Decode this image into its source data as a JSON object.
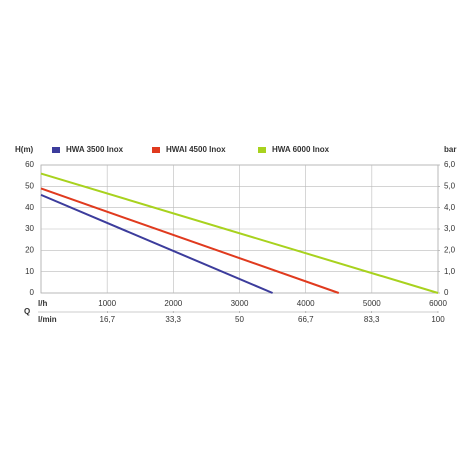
{
  "chart_data": {
    "type": "line",
    "ylabel": "H(m)",
    "y2label": "bar",
    "xlabel": "l/h",
    "x2label": "l/min",
    "xaxis_title": "Q",
    "xlim": [
      0,
      6000
    ],
    "xticks": [
      1000,
      2000,
      3000,
      4000,
      5000,
      6000
    ],
    "x2lim": [
      0,
      100
    ],
    "x2ticks": [
      {
        "value": 16.7,
        "label": "16,7"
      },
      {
        "value": 33.3,
        "label": "33,3"
      },
      50,
      {
        "value": 66.7,
        "label": "66,7"
      },
      {
        "value": 83.3,
        "label": "83,3"
      },
      100
    ],
    "ylim": [
      0,
      60
    ],
    "yticks": [
      0,
      10,
      20,
      30,
      40,
      50,
      60
    ],
    "y2lim": [
      0,
      6
    ],
    "y2ticks": [
      0,
      {
        "value": 1,
        "label": "1,0"
      },
      {
        "value": 2,
        "label": "2,0"
      },
      {
        "value": 3,
        "label": "3,0"
      },
      {
        "value": 4,
        "label": "4,0"
      },
      {
        "value": 5,
        "label": "5,0"
      },
      {
        "value": 6,
        "label": "6,0"
      }
    ],
    "grid": true,
    "series": [
      {
        "name": "HWA 3500 Inox",
        "color": "#3c3c9c",
        "x": [
          0,
          3500
        ],
        "values": [
          46,
          0
        ]
      },
      {
        "name": "HWAI 4500 Inox",
        "color": "#e03a1e",
        "x": [
          0,
          4500
        ],
        "values": [
          49,
          0
        ]
      },
      {
        "name": "HWA 6000 Inox",
        "color": "#a8d21e",
        "x": [
          0,
          6000
        ],
        "values": [
          56,
          0
        ]
      }
    ]
  }
}
